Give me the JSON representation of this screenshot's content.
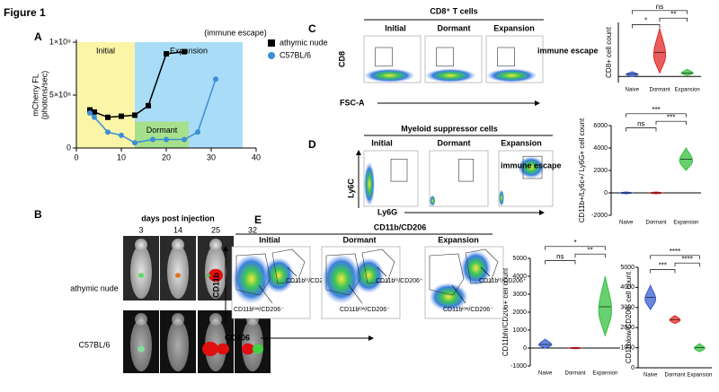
{
  "figure_title": "Figure 1",
  "chart_data": [
    {
      "type": "line",
      "panel": "A",
      "ylabel": [
        "mCherry FL",
        "(photons/sec)"
      ],
      "xlim": [
        0,
        40
      ],
      "xticks": [
        0,
        10,
        20,
        30,
        40
      ],
      "ylim": [
        0,
        1000000000
      ],
      "yticks": [
        0,
        {
          "value": 500000000,
          "label": "5×10⁸"
        },
        {
          "value": 1000000000,
          "label": "1×10⁹"
        }
      ],
      "regions": [
        {
          "label": "Initial",
          "x": [
            0,
            13
          ],
          "color": "#fbf5a8"
        },
        {
          "label": "Expansion",
          "x": [
            13,
            37
          ],
          "color": "#a9dcf7"
        },
        {
          "label": "Dormant",
          "x": [
            13,
            25
          ],
          "y": [
            0,
            250000000
          ],
          "color": "#a6e08c"
        }
      ],
      "annotation": "(immune escape)",
      "legend": "upper right",
      "series": [
        {
          "name": "athymic nude",
          "color": "#000000",
          "marker": "square",
          "x": [
            3,
            4,
            7,
            10,
            13,
            16,
            20,
            24
          ],
          "values": [
            360000000,
            340000000,
            290000000,
            300000000,
            310000000,
            400000000,
            890000000,
            910000000
          ]
        },
        {
          "name": "C57BL/6",
          "color": "#3b8fd6",
          "marker": "circle",
          "x": [
            3,
            4,
            7,
            10,
            13,
            17,
            20,
            24,
            27,
            31
          ],
          "values": [
            330000000,
            290000000,
            150000000,
            120000000,
            50000000,
            80000000,
            80000000,
            80000000,
            150000000,
            650000000
          ]
        }
      ]
    },
    {
      "type": "violin",
      "ylabel": "CD8+ cell count",
      "categories": [
        "Naive",
        "Dormant",
        "Expansion"
      ],
      "colors": [
        "#3a5fd0",
        "#e02828",
        "#35c040"
      ],
      "ylim": [
        -50,
        450
      ],
      "values": [
        20,
        200,
        30
      ],
      "ranges": [
        [
          0,
          40
        ],
        [
          30,
          400
        ],
        [
          10,
          60
        ]
      ],
      "significance": [
        "*",
        "**",
        "ns"
      ]
    },
    {
      "type": "violin",
      "ylabel": "CD11b+/Ly6c+/ Ly6G+ cell count",
      "categories": [
        "Naive",
        "Dormant",
        "Expansion"
      ],
      "colors": [
        "#3a5fd0",
        "#e02828",
        "#35c040"
      ],
      "ylim": [
        -2000,
        6000
      ],
      "yticks": [
        -2000,
        0,
        2000,
        4000,
        6000
      ],
      "values": [
        0,
        0,
        3000
      ],
      "ranges": [
        [
          -80,
          80
        ],
        [
          -80,
          80
        ],
        [
          2000,
          4000
        ]
      ],
      "significance": [
        "ns",
        "***",
        "***"
      ]
    },
    {
      "type": "violin",
      "ylabel": "CD11bhi/CD206+ cell count",
      "categories": [
        "Naive",
        "Dormant",
        "Expansion"
      ],
      "colors": [
        "#3a5fd0",
        "#e02828",
        "#35c040"
      ],
      "ylim": [
        -1000,
        5000
      ],
      "yticks": [
        -1000,
        0,
        1000,
        2000,
        3000,
        4000,
        5000
      ],
      "values": [
        200,
        0,
        2300
      ],
      "ranges": [
        [
          0,
          500
        ],
        [
          -40,
          40
        ],
        [
          700,
          4000
        ]
      ],
      "significance": [
        "ns",
        "**",
        "*"
      ]
    },
    {
      "type": "violin",
      "ylabel": "CD11blow/CD206- cell count",
      "categories": [
        "Naive",
        "Dormant",
        "Expansion"
      ],
      "colors": [
        "#3a5fd0",
        "#e02828",
        "#35c040"
      ],
      "ylim": [
        0,
        5000
      ],
      "yticks": [
        0,
        1000,
        2000,
        3000,
        4000,
        5000
      ],
      "values": [
        3500,
        2400,
        1000
      ],
      "ranges": [
        [
          2900,
          4100
        ],
        [
          2200,
          2600
        ],
        [
          800,
          1200
        ]
      ],
      "significance": [
        "***",
        "****",
        "****"
      ]
    }
  ],
  "panel_b": {
    "label": "B",
    "subtitle": "days post injection",
    "days": [
      "3",
      "14",
      "25",
      "32"
    ],
    "rows": [
      "athymic nude",
      "C57BL/6"
    ]
  },
  "panel_c": {
    "label": "C",
    "title": "CD8⁺ T cells",
    "columns": [
      "Initial",
      "Dormant",
      "Expansion"
    ],
    "y_axis": "CD8",
    "x_axis": "FSC-A",
    "annotation": "immune escape"
  },
  "panel_d": {
    "label": "D",
    "title": "Myeloid suppressor cells",
    "columns": [
      "Initial",
      "Dormant",
      "Expansion"
    ],
    "y_axis": "Ly6C",
    "x_axis": "Ly6G",
    "annotation": "immune escape"
  },
  "panel_e": {
    "label": "E",
    "title": "CD11b/CD206",
    "columns": [
      "Initial",
      "Dormant",
      "Expansion"
    ],
    "y_axis": "CD11b",
    "x_axis": "CD206",
    "gates": [
      "CD11bʰⁱ/CD206⁺",
      "CD11bˡᵒʷ/CD206⁻"
    ]
  }
}
